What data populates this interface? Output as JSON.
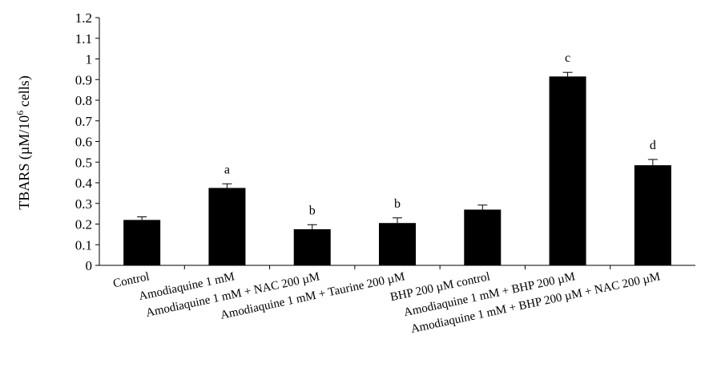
{
  "chart_data": {
    "type": "bar",
    "categories": [
      "Control",
      "Amodiaquine 1 mM",
      "Amodiaquine 1 mM + NAC 200 µM",
      "Amodiaquine 1 mM + Taurine 200 µM",
      "BHP  200 µM control",
      "Amodiaquine 1 mM + BHP 200 µM",
      "Amodiaquine 1 mM + BHP 200 µM + NAC 200 µM"
    ],
    "values": [
      0.22,
      0.375,
      0.175,
      0.205,
      0.27,
      0.915,
      0.485
    ],
    "errors": [
      0.015,
      0.02,
      0.022,
      0.025,
      0.022,
      0.02,
      0.028
    ],
    "significance": [
      "",
      "a",
      "b",
      "b",
      "",
      "c",
      "d"
    ],
    "ylabel": "TBARS (µM/10",
    "ylabel_sup": "6",
    "ylabel_suffix": " cells)",
    "ylim": [
      0,
      1.2
    ],
    "yticks": [
      "0",
      "0.1",
      "0.2",
      "0.3",
      "0.4",
      "0.5",
      "0.6",
      "0.7",
      "0.8",
      "0.9",
      "1",
      "1.1",
      "1.2"
    ],
    "grid": false,
    "colors": {
      "bar": "#000000",
      "axis": "#000000"
    }
  }
}
